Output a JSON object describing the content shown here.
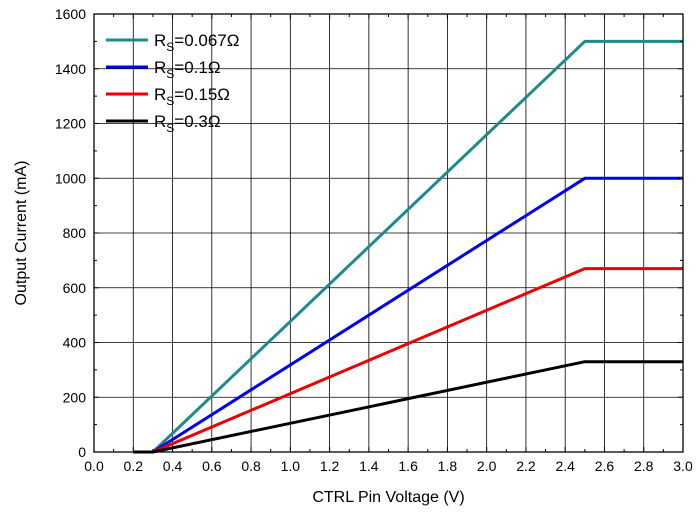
{
  "chart_data": {
    "type": "line",
    "xlabel": "CTRL Pin Voltage (V)",
    "ylabel": "Output Current (mA)",
    "xlim": [
      0.0,
      3.0
    ],
    "ylim": [
      0,
      1600
    ],
    "xticks": [
      "0.0",
      "0.2",
      "0.4",
      "0.6",
      "0.8",
      "1.0",
      "1.2",
      "1.4",
      "1.6",
      "1.8",
      "2.0",
      "2.2",
      "2.4",
      "2.6",
      "2.8",
      "3.0"
    ],
    "yticks": [
      "0",
      "200",
      "400",
      "600",
      "800",
      "1000",
      "1200",
      "1400",
      "1600"
    ],
    "grid": true,
    "legend_position": "top-left",
    "series": [
      {
        "name": "R_S=0.067Ω",
        "label_main": "R",
        "label_sub": "S",
        "label_rest": "=0.067Ω",
        "color": "#1f8a8a",
        "x": [
          0.2,
          0.3,
          2.5,
          3.0
        ],
        "y": [
          0,
          0,
          1500,
          1500
        ]
      },
      {
        "name": "R_S=0.1Ω",
        "label_main": "R",
        "label_sub": "S",
        "label_rest": "=0.1Ω",
        "color": "#0000ee",
        "x": [
          0.2,
          0.3,
          2.5,
          3.0
        ],
        "y": [
          0,
          0,
          1000,
          1000
        ]
      },
      {
        "name": "R_S=0.15Ω",
        "label_main": "R",
        "label_sub": "S",
        "label_rest": "=0.15Ω",
        "color": "#ee0000",
        "x": [
          0.2,
          0.3,
          2.5,
          3.0
        ],
        "y": [
          0,
          0,
          670,
          670
        ]
      },
      {
        "name": "R_S=0.3Ω",
        "label_main": "R",
        "label_sub": "S",
        "label_rest": "=0.3Ω",
        "color": "#000000",
        "x": [
          0.2,
          0.3,
          2.5,
          3.0
        ],
        "y": [
          0,
          0,
          330,
          330
        ]
      }
    ]
  }
}
